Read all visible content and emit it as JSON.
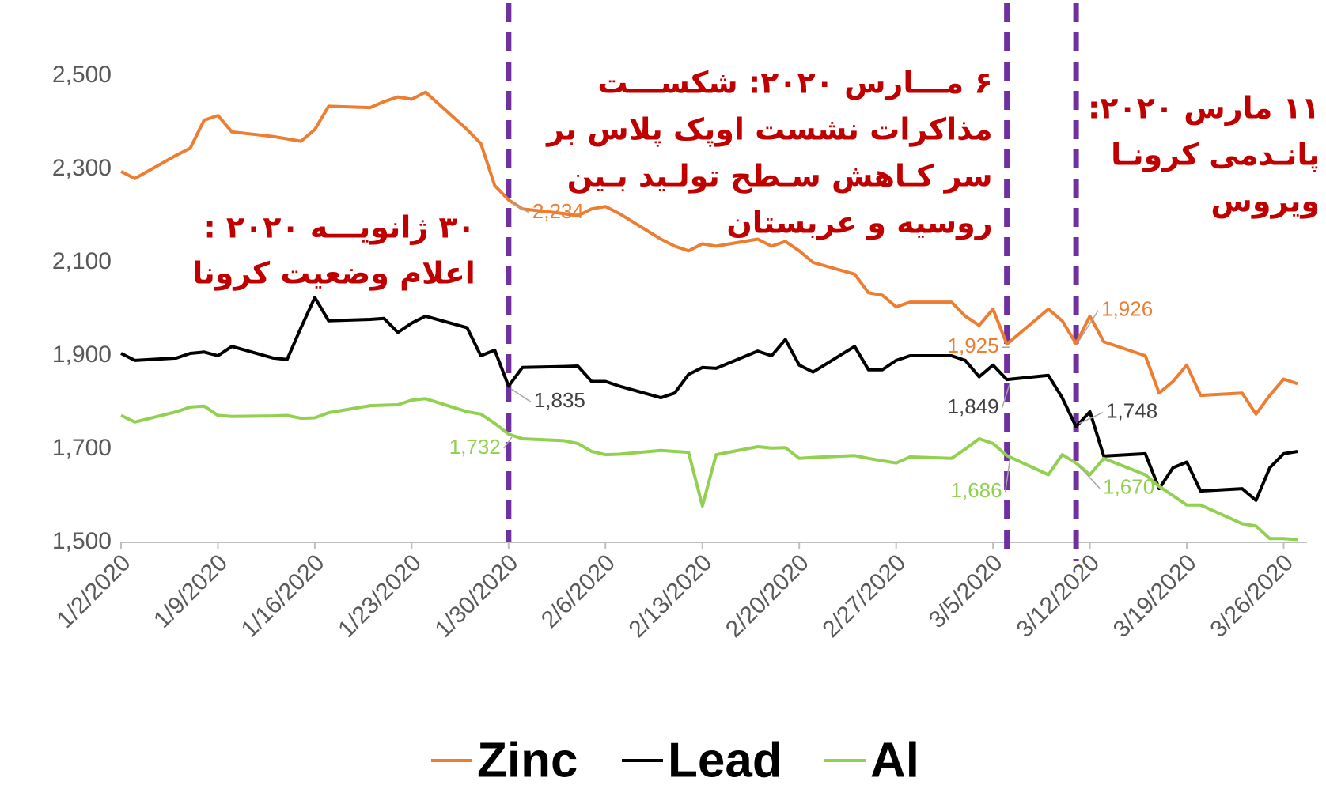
{
  "chart_data": {
    "type": "line",
    "x": [
      "1/2/2020",
      "1/3/2020",
      "1/6/2020",
      "1/7/2020",
      "1/8/2020",
      "1/9/2020",
      "1/10/2020",
      "1/13/2020",
      "1/14/2020",
      "1/15/2020",
      "1/16/2020",
      "1/17/2020",
      "1/20/2020",
      "1/21/2020",
      "1/22/2020",
      "1/23/2020",
      "1/24/2020",
      "1/27/2020",
      "1/28/2020",
      "1/29/2020",
      "1/30/2020",
      "1/31/2020",
      "2/3/2020",
      "2/4/2020",
      "2/5/2020",
      "2/6/2020",
      "2/7/2020",
      "2/10/2020",
      "2/11/2020",
      "2/12/2020",
      "2/13/2020",
      "2/14/2020",
      "2/17/2020",
      "2/18/2020",
      "2/19/2020",
      "2/20/2020",
      "2/21/2020",
      "2/24/2020",
      "2/25/2020",
      "2/26/2020",
      "2/27/2020",
      "2/28/2020",
      "3/2/2020",
      "3/3/2020",
      "3/4/2020",
      "3/5/2020",
      "3/6/2020",
      "3/9/2020",
      "3/10/2020",
      "3/11/2020",
      "3/12/2020",
      "3/13/2020",
      "3/16/2020",
      "3/17/2020",
      "3/18/2020",
      "3/19/2020",
      "3/20/2020",
      "3/23/2020",
      "3/24/2020",
      "3/25/2020",
      "3/26/2020",
      "3/27/2020"
    ],
    "series": [
      {
        "name": "Zinc",
        "color": "#ed7d31",
        "values": [
          2295,
          2280,
          2330,
          2345,
          2405,
          2415,
          2380,
          2370,
          2365,
          2360,
          2385,
          2435,
          2432,
          2445,
          2455,
          2450,
          2465,
          2385,
          2355,
          2265,
          2234,
          2215,
          2205,
          2200,
          2215,
          2220,
          2205,
          2150,
          2135,
          2125,
          2140,
          2135,
          2150,
          2135,
          2145,
          2125,
          2100,
          2075,
          2035,
          2030,
          2005,
          2015,
          2015,
          1985,
          1965,
          2000,
          1925,
          2000,
          1975,
          1926,
          1985,
          1930,
          1900,
          1820,
          1845,
          1880,
          1815,
          1820,
          1775,
          1815,
          1850,
          1840
        ],
        "value_labels": [
          null,
          null,
          null,
          null,
          null,
          null,
          null,
          null,
          null,
          null,
          null,
          null,
          null,
          null,
          null,
          null,
          null,
          null,
          null,
          null,
          "2,234",
          null,
          null,
          null,
          null,
          null,
          null,
          null,
          null,
          null,
          null,
          null,
          null,
          null,
          null,
          null,
          null,
          null,
          null,
          null,
          null,
          null,
          null,
          null,
          null,
          null,
          "1,925",
          null,
          null,
          "1,926",
          null,
          null,
          null,
          null,
          null,
          null,
          null,
          null,
          null,
          null,
          null,
          null
        ]
      },
      {
        "name": "Lead",
        "color": "#000000",
        "values": [
          1905,
          1890,
          1895,
          1905,
          1908,
          1900,
          1920,
          1895,
          1892,
          1960,
          2025,
          1975,
          1978,
          1980,
          1950,
          1970,
          1985,
          1960,
          1900,
          1912,
          1835,
          1875,
          1877,
          1878,
          1845,
          1845,
          1835,
          1810,
          1820,
          1860,
          1875,
          1873,
          1910,
          1900,
          1935,
          1880,
          1865,
          1920,
          1870,
          1870,
          1890,
          1900,
          1900,
          1890,
          1855,
          1880,
          1849,
          1858,
          1810,
          1748,
          1780,
          1685,
          1690,
          1615,
          1660,
          1672,
          1610,
          1615,
          1590,
          1660,
          1690,
          1695
        ],
        "value_labels": [
          null,
          null,
          null,
          null,
          null,
          null,
          null,
          null,
          null,
          null,
          null,
          null,
          null,
          null,
          null,
          null,
          null,
          null,
          null,
          null,
          "1,835",
          null,
          null,
          null,
          null,
          null,
          null,
          null,
          null,
          null,
          null,
          null,
          null,
          null,
          null,
          null,
          null,
          null,
          null,
          null,
          null,
          null,
          null,
          null,
          null,
          null,
          "1,849",
          null,
          null,
          "1,748",
          null,
          null,
          null,
          null,
          null,
          null,
          null,
          null,
          null,
          null,
          null,
          null
        ]
      },
      {
        "name": "Al",
        "color": "#92d050",
        "values": [
          1772,
          1758,
          1780,
          1790,
          1792,
          1772,
          1770,
          1771,
          1772,
          1766,
          1767,
          1778,
          1793,
          1794,
          1795,
          1805,
          1808,
          1780,
          1775,
          1755,
          1732,
          1722,
          1718,
          1712,
          1695,
          1688,
          1689,
          1697,
          1695,
          1693,
          1578,
          1688,
          1705,
          1702,
          1703,
          1680,
          1682,
          1686,
          1680,
          1675,
          1670,
          1683,
          1680,
          1700,
          1722,
          1712,
          1686,
          1645,
          1688,
          1670,
          1645,
          1680,
          1645,
          1620,
          1600,
          1580,
          1580,
          1540,
          1535,
          1508,
          1508,
          1506
        ],
        "value_labels": [
          null,
          null,
          null,
          null,
          null,
          null,
          null,
          null,
          null,
          null,
          null,
          null,
          null,
          null,
          null,
          null,
          null,
          null,
          null,
          null,
          "1,732",
          null,
          null,
          null,
          null,
          null,
          null,
          null,
          null,
          null,
          null,
          null,
          null,
          null,
          null,
          null,
          null,
          null,
          null,
          null,
          null,
          null,
          null,
          null,
          null,
          null,
          "1,686",
          null,
          null,
          "1,670",
          null,
          null,
          null,
          null,
          null,
          null,
          null,
          null,
          null,
          null,
          null,
          null
        ]
      }
    ],
    "xlim": [
      "1/2/2020",
      "3/27/2020"
    ],
    "xticks": [
      "1/2/2020",
      "1/9/2020",
      "1/16/2020",
      "1/23/2020",
      "1/30/2020",
      "2/6/2020",
      "2/13/2020",
      "2/20/2020",
      "2/27/2020",
      "3/5/2020",
      "3/12/2020",
      "3/19/2020",
      "3/26/2020"
    ],
    "ylim": [
      1500,
      2500
    ],
    "yticks": [
      {
        "value": 1500,
        "label": "1,500"
      },
      {
        "value": 1700,
        "label": "1,700"
      },
      {
        "value": 1900,
        "label": "1,900"
      },
      {
        "value": 2100,
        "label": "2,100"
      },
      {
        "value": 2300,
        "label": "2,300"
      },
      {
        "value": 2500,
        "label": "2,500"
      }
    ],
    "grid": false,
    "legend": "bottom",
    "annotations": [
      {
        "x": "1/30/2020",
        "lines": [
          "۳۰ ژانویـــه ۲۰۲۰ :",
          "اعلام وضعیت کرونا"
        ]
      },
      {
        "x": "3/6/2020",
        "lines": [
          "۶ مـــارس ۲۰۲۰: شکســـت",
          "مذاکرات نشست اوپک پلاس بر",
          "سر کـاهش سـطح تولـید بـین",
          "روسیه و عربستان"
        ]
      },
      {
        "x": "3/11/2020",
        "lines": [
          "۱۱ مارس ۲۰۲۰:",
          "پانـدمی کرونـا",
          "ویروس"
        ]
      }
    ]
  }
}
